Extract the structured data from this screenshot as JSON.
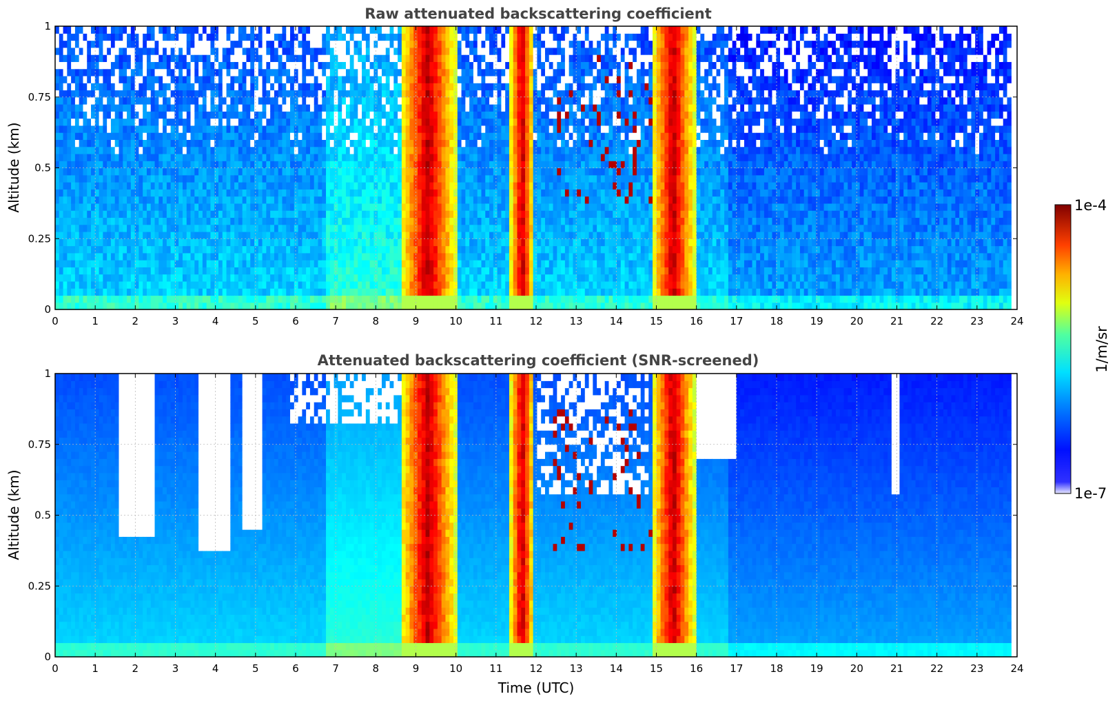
{
  "chart_data": [
    {
      "type": "heatmap",
      "title": "Raw attenuated backscattering coefficient",
      "xlabel": "",
      "ylabel": "Altitude (km)",
      "xlim": [
        0,
        24
      ],
      "ylim": [
        0,
        1
      ],
      "x_ticks": [
        "0",
        "1",
        "2",
        "3",
        "4",
        "5",
        "6",
        "7",
        "8",
        "9",
        "10",
        "11",
        "12",
        "13",
        "14",
        "15",
        "16",
        "17",
        "18",
        "19",
        "20",
        "21",
        "22",
        "23",
        "24"
      ],
      "y_ticks": [
        "0",
        "0.25",
        "0.5",
        "0.75",
        "1"
      ],
      "grid": true,
      "colormap": "jet",
      "cloud_bands_utc": [
        [
          8.6,
          10.0
        ],
        [
          11.35,
          11.95
        ],
        [
          14.9,
          15.95
        ]
      ],
      "aerosol_layer_top_km": 0.4,
      "noisy_above": true
    },
    {
      "type": "heatmap",
      "title": "Attenuated backscattering coefficient (SNR-screened)",
      "xlabel": "Time (UTC)",
      "ylabel": "Altitude (km)",
      "xlim": [
        0,
        24
      ],
      "ylim": [
        0,
        1
      ],
      "x_ticks": [
        "0",
        "1",
        "2",
        "3",
        "4",
        "5",
        "6",
        "7",
        "8",
        "9",
        "10",
        "11",
        "12",
        "13",
        "14",
        "15",
        "16",
        "17",
        "18",
        "19",
        "20",
        "21",
        "22",
        "23",
        "24"
      ],
      "y_ticks": [
        "0",
        "0.25",
        "0.5",
        "0.75",
        "1"
      ],
      "grid": true,
      "colormap": "jet",
      "cloud_bands_utc": [
        [
          8.6,
          10.0
        ],
        [
          11.35,
          11.95
        ],
        [
          14.9,
          15.95
        ]
      ],
      "screened_gaps": [
        {
          "from": 1.55,
          "to": 2.45,
          "base_km": 0.42
        },
        {
          "from": 3.6,
          "to": 4.4,
          "base_km": 0.38
        },
        {
          "from": 4.7,
          "to": 5.2,
          "base_km": 0.45
        },
        {
          "from": 20.9,
          "to": 21.05,
          "base_km": 0.57
        }
      ]
    }
  ],
  "colorbar": {
    "label": "1/m/sr",
    "max_label": "1e-4",
    "min_label": "1e-7",
    "scale": "log",
    "range": [
      1e-07,
      0.0001
    ]
  }
}
